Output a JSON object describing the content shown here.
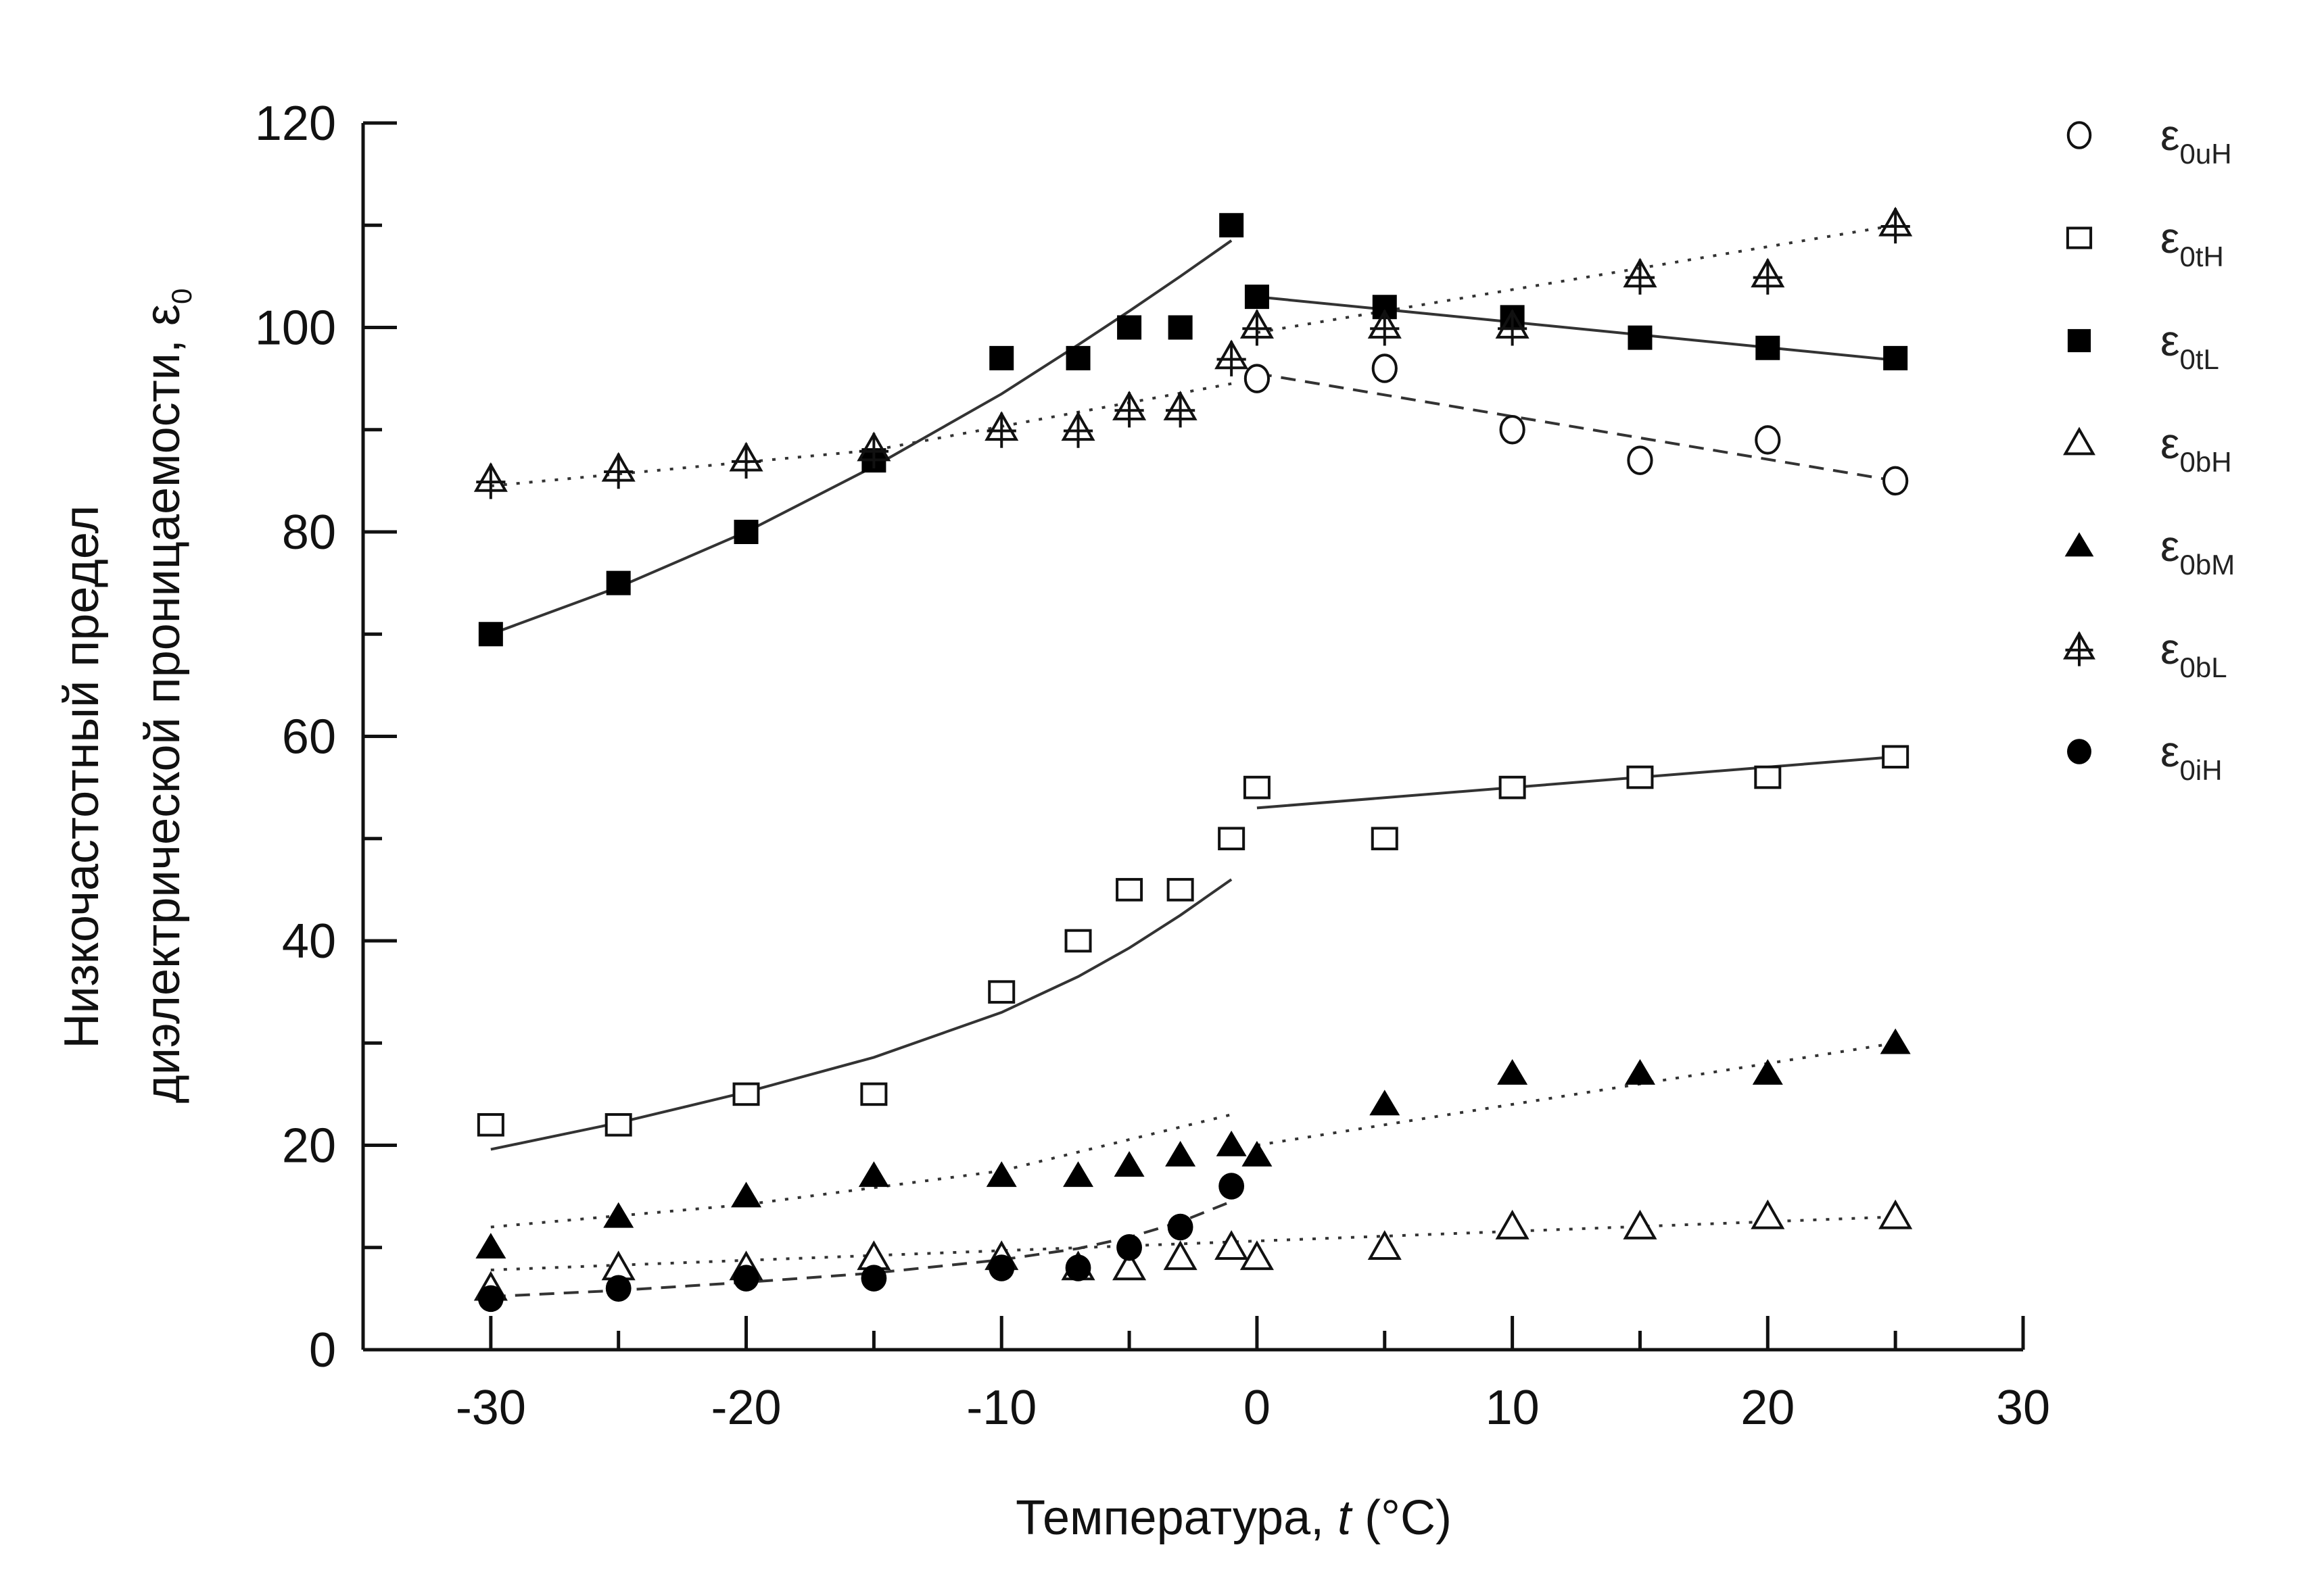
{
  "chart_data": {
    "type": "scatter",
    "title": "",
    "xlabel": "Температура, t (°C)",
    "xlabel_parts": {
      "prefix": "Температура, ",
      "italic": "t",
      "suffix": " (°C)"
    },
    "ylabel_line1": "Низкочастотный предел",
    "ylabel_line2": "диэлектрической проницаемости, ε",
    "ylabel_sub": "0",
    "xlim": [
      -35,
      30
    ],
    "ylim": [
      0,
      120
    ],
    "xticks": [
      -30,
      -20,
      -10,
      0,
      10,
      20,
      30
    ],
    "xtick_labels": [
      "-30",
      "-20",
      "-10",
      "0",
      "10",
      "20",
      "30"
    ],
    "yticks": [
      0,
      20,
      40,
      60,
      80,
      100,
      120
    ],
    "ytick_labels": [
      "0",
      "20",
      "40",
      "60",
      "80",
      "100",
      "120"
    ],
    "grid": false,
    "legend_position": "right",
    "series": [
      {
        "name": "ε0uH",
        "symbol": "ε",
        "sub": "0uH",
        "marker": "circle-open",
        "x": [
          0,
          5,
          10,
          15,
          20,
          25
        ],
        "y": [
          95,
          96,
          90,
          87,
          89,
          85
        ],
        "fits": [
          {
            "x": [
              0,
              25
            ],
            "y": [
              95.5,
              85
            ],
            "style": "dashed"
          }
        ]
      },
      {
        "name": "ε0tH",
        "symbol": "ε",
        "sub": "0tH",
        "marker": "square-open",
        "x": [
          -30,
          -25,
          -20,
          -15,
          -10,
          -7,
          -5,
          -3,
          -1,
          0,
          5,
          10,
          15,
          20,
          25
        ],
        "y": [
          22,
          22,
          25,
          25,
          35,
          40,
          45,
          45,
          50,
          55,
          50,
          55,
          56,
          56,
          58
        ],
        "fits": [
          {
            "x": [
              -30,
              -25,
              -20,
              -15,
              -10,
              -7,
              -5,
              -3,
              -1
            ],
            "y": [
              19.6,
              22.2,
              25.2,
              28.6,
              33.0,
              36.5,
              39.3,
              42.5,
              46.0
            ],
            "style": "solid"
          },
          {
            "x": [
              0,
              25
            ],
            "y": [
              53,
              58
            ],
            "style": "solid"
          }
        ]
      },
      {
        "name": "ε0tL",
        "symbol": "ε",
        "sub": "0tL",
        "marker": "square-filled",
        "x": [
          -30,
          -25,
          -20,
          -15,
          -10,
          -7,
          -5,
          -3,
          -1,
          0,
          5,
          10,
          15,
          20,
          25
        ],
        "y": [
          70,
          75,
          80,
          87,
          97,
          97,
          100,
          100,
          110,
          103,
          102,
          101,
          99,
          98,
          97
        ],
        "fits": [
          {
            "x": [
              -30,
              -25,
              -20,
              -15,
              -10,
              -7,
              -5,
              -3,
              -1
            ],
            "y": [
              70,
              74.6,
              80,
              86.4,
              93.5,
              98.3,
              101.6,
              105,
              108.5
            ],
            "style": "solid"
          },
          {
            "x": [
              0,
              25
            ],
            "y": [
              103,
              96.8
            ],
            "style": "solid"
          }
        ]
      },
      {
        "name": "ε0bH",
        "symbol": "ε",
        "sub": "0bH",
        "marker": "triangle-open",
        "x": [
          -30,
          -25,
          -20,
          -15,
          -10,
          -7,
          -5,
          -3,
          -1,
          0,
          5,
          10,
          15,
          20,
          25
        ],
        "y": [
          6,
          8,
          8,
          9,
          9,
          8,
          8,
          9,
          10,
          9,
          10,
          12,
          12,
          13,
          13
        ],
        "fits": [
          {
            "x": [
              -30,
              25
            ],
            "y": [
              7.8,
              13
            ],
            "style": "dotted"
          }
        ]
      },
      {
        "name": "ε0bM",
        "symbol": "ε",
        "sub": "0bM",
        "marker": "triangle-filled",
        "x": [
          -30,
          -25,
          -20,
          -15,
          -10,
          -7,
          -5,
          -3,
          -1,
          0,
          5,
          10,
          15,
          20,
          25
        ],
        "y": [
          10,
          13,
          15,
          17,
          17,
          17,
          18,
          19,
          20,
          19,
          24,
          27,
          27,
          27,
          30
        ],
        "fits": [
          {
            "x": [
              -30,
              -20,
              -10,
              -1
            ],
            "y": [
              12,
              14.2,
              17.5,
              23
            ],
            "style": "dotted"
          },
          {
            "x": [
              0,
              25
            ],
            "y": [
              20,
              30
            ],
            "style": "dotted"
          }
        ]
      },
      {
        "name": "ε0bL",
        "symbol": "ε",
        "sub": "0bL",
        "marker": "triangle-cross",
        "x": [
          -30,
          -25,
          -20,
          -15,
          -10,
          -7,
          -5,
          -3,
          -1,
          0,
          5,
          10,
          15,
          20,
          25
        ],
        "y": [
          85,
          86,
          87,
          88,
          90,
          90,
          92,
          92,
          97,
          100,
          100,
          100,
          105,
          105,
          110
        ],
        "fits": [
          {
            "x": [
              -30,
              -15,
              -1
            ],
            "y": [
              84.5,
              88,
              94.5
            ],
            "style": "dotted"
          },
          {
            "x": [
              0,
              25
            ],
            "y": [
              99.5,
              110
            ],
            "style": "dotted"
          }
        ]
      },
      {
        "name": "ε0iH",
        "symbol": "ε",
        "sub": "0iH",
        "marker": "circle-filled",
        "x": [
          -30,
          -25,
          -20,
          -15,
          -10,
          -7,
          -5,
          -3,
          -1
        ],
        "y": [
          5,
          6,
          7,
          7,
          8,
          8,
          10,
          12,
          16
        ],
        "fits": [
          {
            "x": [
              -30,
              -25,
              -20,
              -15,
              -10,
              -7,
              -5,
              -3,
              -1
            ],
            "y": [
              5.2,
              5.8,
              6.6,
              7.5,
              8.8,
              9.9,
              11,
              12.5,
              14.5
            ],
            "style": "dashed"
          }
        ]
      }
    ]
  }
}
